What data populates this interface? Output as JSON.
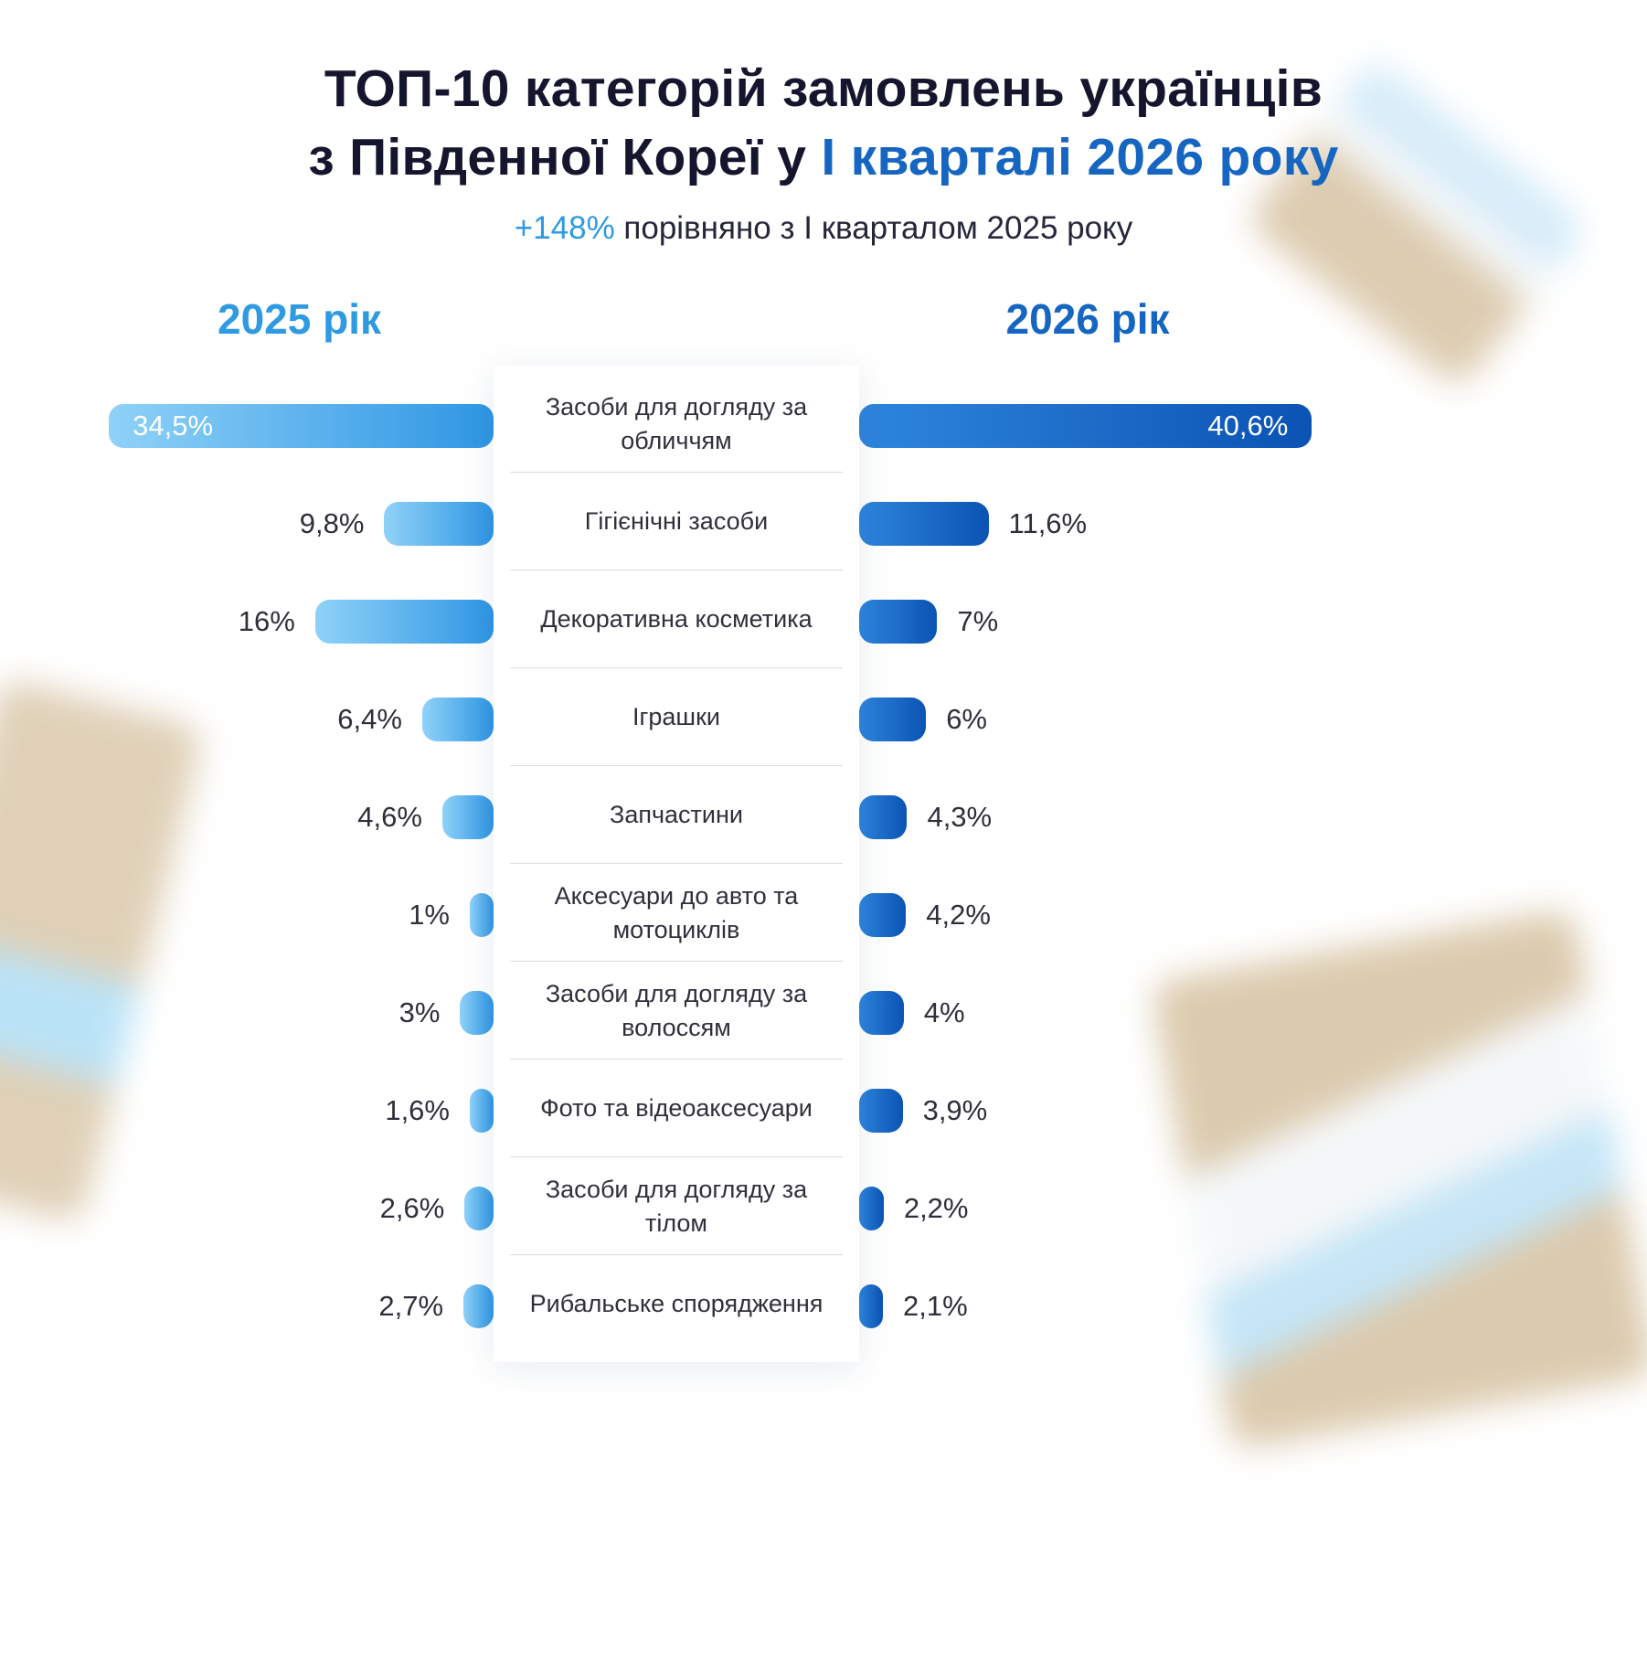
{
  "palette": {
    "left_bar_start": "#8fd2f8",
    "left_bar_end": "#2f96e4",
    "right_bar_start": "#2e86dd",
    "right_bar_end": "#0b53b4",
    "accent_light": "#2e9ae2",
    "accent_dark": "#1666c1",
    "title_color": "#15152e",
    "text_color": "#2f2f3a",
    "divider_color": "#dcdce2"
  },
  "header": {
    "title_line1": "ТОП-10 категорій замовлень українців",
    "title_line2_dark": "з Південної Кореї у ",
    "title_line2_accent": "І кварталі 2026 року",
    "subtitle_accent": "+148%",
    "subtitle_rest": " порівняно з І кварталом 2025 року"
  },
  "columns": {
    "left_label": "2025 рік",
    "right_label": "2026 рік"
  },
  "chart_data": {
    "type": "bar",
    "layout": "diverging-horizontal",
    "title": "ТОП-10 категорій замовлень українців з Південної Кореї у І кварталі 2026 року",
    "subtitle": "+148% порівняно з І кварталом 2025 року",
    "unit": "%",
    "categories": [
      "Засоби для догляду за обличчям",
      "Гігієнічні засоби",
      "Декоративна косметика",
      "Іграшки",
      "Запчастини",
      "Аксесуари до авто та мотоциклів",
      "Засоби для догляду за волоссям",
      "Фото та відеоаксесуари",
      "Засоби для догляду за тілом",
      "Рибальське спорядження"
    ],
    "series": [
      {
        "name": "2025 рік",
        "values": [
          34.5,
          9.8,
          16,
          6.4,
          4.6,
          1,
          3,
          1.6,
          2.6,
          2.7
        ],
        "value_labels": [
          "34,5%",
          "9,8%",
          "16%",
          "6,4%",
          "4,6%",
          "1%",
          "3%",
          "1,6%",
          "2,6%",
          "2,7%"
        ]
      },
      {
        "name": "2026 рік",
        "values": [
          40.6,
          11.6,
          7,
          6,
          4.3,
          4.2,
          4,
          3.9,
          2.2,
          2.1
        ],
        "value_labels": [
          "40,6%",
          "11,6%",
          "7%",
          "6%",
          "4,3%",
          "4,2%",
          "4%",
          "3,9%",
          "2,2%",
          "2,1%"
        ]
      }
    ]
  }
}
